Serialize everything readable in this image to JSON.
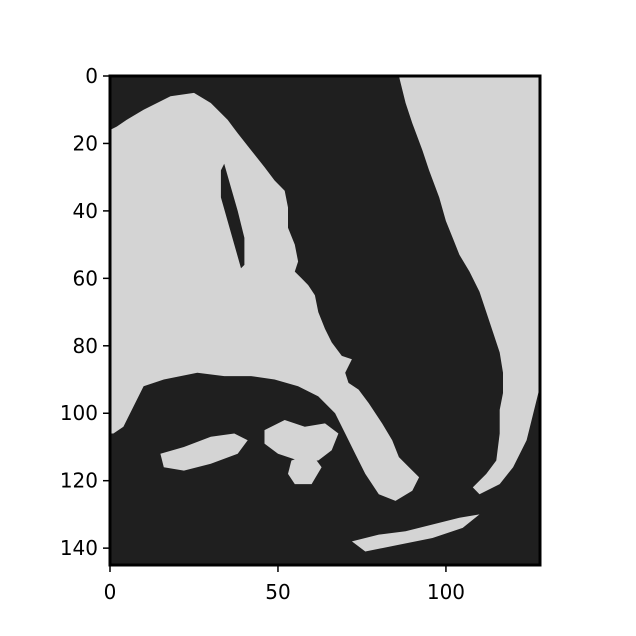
{
  "figure": {
    "kind": "binary-mask image display",
    "colors": {
      "background": "#1f1f1f",
      "foreground": "#d4d4d4",
      "frame": "#000000"
    }
  },
  "chart_data": {
    "type": "heatmap",
    "xlim": [
      0,
      128
    ],
    "ylim": [
      145,
      0
    ],
    "xticks": [
      0,
      50,
      100
    ],
    "yticks": [
      0,
      20,
      40,
      60,
      80,
      100,
      120,
      140
    ],
    "xtick_labels": [
      "0",
      "50",
      "100"
    ],
    "ytick_labels": [
      "0",
      "20",
      "40",
      "60",
      "80",
      "100",
      "120",
      "140"
    ],
    "grid": false,
    "legend": "none",
    "regions": [
      {
        "name": "upper-left-landmass",
        "value": 1,
        "outline": [
          [
            2,
            15
          ],
          [
            5,
            13
          ],
          [
            10,
            10
          ],
          [
            18,
            6
          ],
          [
            25,
            5
          ],
          [
            30,
            8
          ],
          [
            35,
            13
          ],
          [
            38,
            17
          ],
          [
            42,
            22
          ],
          [
            46,
            27
          ],
          [
            49,
            31
          ],
          [
            52,
            34
          ],
          [
            53,
            39
          ],
          [
            53,
            45
          ],
          [
            55,
            50
          ],
          [
            56,
            55
          ],
          [
            55,
            58
          ],
          [
            57,
            60
          ],
          [
            59,
            62
          ],
          [
            61,
            65
          ],
          [
            62,
            70
          ],
          [
            64,
            75
          ],
          [
            66,
            79
          ],
          [
            69,
            83
          ],
          [
            72,
            84
          ],
          [
            70,
            88
          ],
          [
            71,
            91
          ],
          [
            74,
            93
          ],
          [
            77,
            97
          ],
          [
            81,
            103
          ],
          [
            84,
            108
          ],
          [
            86,
            113
          ],
          [
            89,
            116
          ],
          [
            92,
            119
          ],
          [
            90,
            123
          ],
          [
            85,
            126
          ],
          [
            80,
            124
          ],
          [
            76,
            118
          ],
          [
            73,
            112
          ],
          [
            70,
            106
          ],
          [
            67,
            100
          ],
          [
            62,
            95
          ],
          [
            56,
            92
          ],
          [
            49,
            90
          ],
          [
            42,
            89
          ],
          [
            34,
            89
          ],
          [
            26,
            88
          ],
          [
            16,
            90
          ],
          [
            10,
            92
          ],
          [
            7,
            98
          ],
          [
            4,
            104
          ],
          [
            1,
            106
          ],
          [
            0,
            106
          ],
          [
            0,
            16
          ]
        ]
      },
      {
        "name": "upper-right-landmass",
        "value": 1,
        "outline": [
          [
            86,
            0
          ],
          [
            128,
            0
          ],
          [
            128,
            92
          ],
          [
            126,
            100
          ],
          [
            124,
            108
          ],
          [
            120,
            116
          ],
          [
            116,
            121
          ],
          [
            110,
            124
          ],
          [
            108,
            122
          ],
          [
            112,
            118
          ],
          [
            115,
            114
          ],
          [
            116,
            106
          ],
          [
            116,
            99
          ],
          [
            117,
            94
          ],
          [
            117,
            88
          ],
          [
            116,
            82
          ],
          [
            114,
            76
          ],
          [
            112,
            70
          ],
          [
            110,
            64
          ],
          [
            107,
            58
          ],
          [
            104,
            53
          ],
          [
            102,
            48
          ],
          [
            100,
            43
          ],
          [
            98,
            36
          ],
          [
            95,
            28
          ],
          [
            93,
            22
          ],
          [
            90,
            14
          ],
          [
            88,
            8
          ]
        ]
      },
      {
        "name": "lower-shelf",
        "value": 1,
        "outline": [
          [
            46,
            105
          ],
          [
            52,
            102
          ],
          [
            58,
            104
          ],
          [
            64,
            103
          ],
          [
            68,
            106
          ],
          [
            66,
            111
          ],
          [
            62,
            114
          ],
          [
            56,
            114
          ],
          [
            50,
            112
          ],
          [
            46,
            109
          ]
        ]
      },
      {
        "name": "lower-middle-fragment",
        "value": 1,
        "outline": [
          [
            54,
            114
          ],
          [
            60,
            112
          ],
          [
            63,
            116
          ],
          [
            60,
            121
          ],
          [
            55,
            121
          ],
          [
            53,
            118
          ]
        ]
      },
      {
        "name": "lower-left-fragment",
        "value": 1,
        "outline": [
          [
            15,
            112
          ],
          [
            22,
            110
          ],
          [
            30,
            107
          ],
          [
            37,
            106
          ],
          [
            41,
            108
          ],
          [
            38,
            112
          ],
          [
            30,
            115
          ],
          [
            22,
            117
          ],
          [
            16,
            116
          ]
        ]
      },
      {
        "name": "bottom-right-strip",
        "value": 1,
        "outline": [
          [
            72,
            138
          ],
          [
            80,
            136
          ],
          [
            88,
            135
          ],
          [
            96,
            133
          ],
          [
            104,
            131
          ],
          [
            110,
            130
          ],
          [
            105,
            134
          ],
          [
            96,
            137
          ],
          [
            86,
            139
          ],
          [
            76,
            141
          ]
        ]
      },
      {
        "name": "river-channel",
        "value": 0,
        "outline": [
          [
            34,
            26
          ],
          [
            36,
            33
          ],
          [
            38,
            40
          ],
          [
            40,
            48
          ],
          [
            40,
            56
          ],
          [
            39,
            57
          ],
          [
            37,
            50
          ],
          [
            35,
            43
          ],
          [
            33,
            36
          ],
          [
            33,
            28
          ]
        ]
      }
    ]
  }
}
